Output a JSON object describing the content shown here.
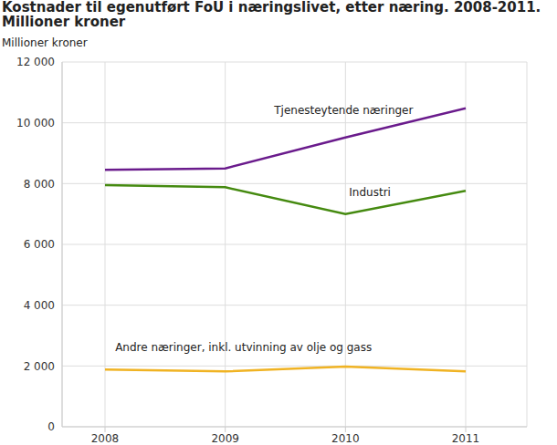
{
  "chart_data": {
    "type": "line",
    "title": "Kostnader til egenutført FoU i næringslivet, etter næring. 2008-2011.\nMillioner kroner",
    "y_label": "Millioner kroner",
    "categories": [
      "2008",
      "2009",
      "2010",
      "2011"
    ],
    "series": [
      {
        "name": "Tjenesteytende næringer",
        "color": "#6a1b8c",
        "values": [
          8450,
          8500,
          9520,
          10480
        ]
      },
      {
        "name": "Industri",
        "color": "#458a10",
        "values": [
          7950,
          7880,
          7000,
          7760
        ]
      },
      {
        "name": "Andre næringer, inkl. utvinning av olje og gass",
        "color": "#f0b323",
        "values": [
          1880,
          1820,
          1980,
          1820
        ]
      }
    ],
    "ylim": [
      0,
      12000
    ],
    "yticks": [
      0,
      {
        "value": 2000,
        "label": "2 000"
      },
      {
        "value": 4000,
        "label": "4 000"
      },
      {
        "value": 6000,
        "label": "6 000"
      },
      {
        "value": 8000,
        "label": "8 000"
      },
      {
        "value": 10000,
        "label": "10 000"
      },
      {
        "value": 12000,
        "label": "12 000"
      }
    ],
    "grid": true
  }
}
